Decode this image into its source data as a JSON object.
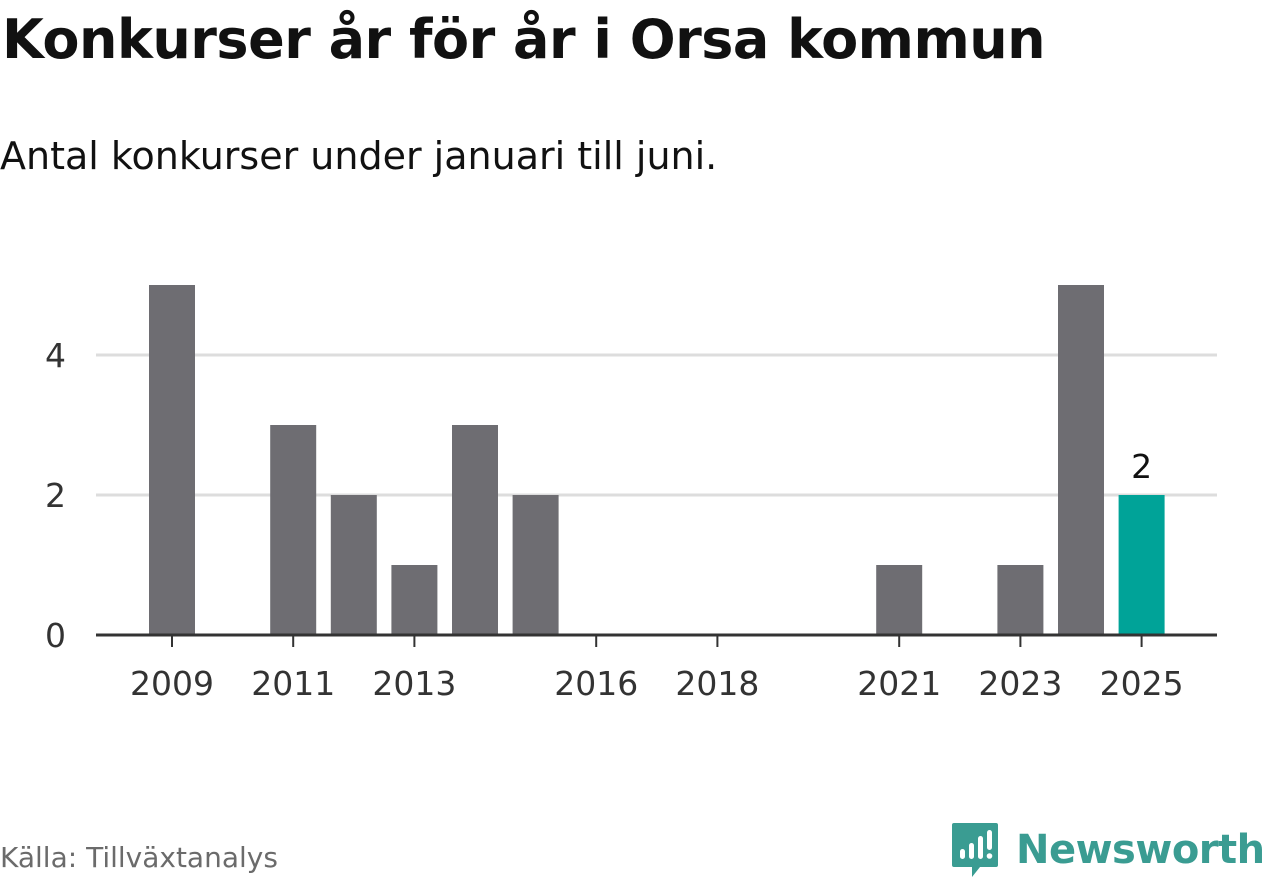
{
  "title": "Konkurser år för år i Orsa kommun",
  "subtitle": "Antal konkurser under januari till juni.",
  "source": "Källa: Tillväxtanalys",
  "brand": {
    "name": "Newsworthy",
    "icon": "newsworthy-logo-icon",
    "color": "#3a9c92"
  },
  "colors": {
    "bar": "#6e6d72",
    "highlight": "#00a398",
    "grid": "#dddddd",
    "axis": "#333333",
    "tick_text": "#333333"
  },
  "chart_data": {
    "type": "bar",
    "categories": [
      "2009",
      "2010",
      "2011",
      "2012",
      "2013",
      "2014",
      "2015",
      "2016",
      "2017",
      "2018",
      "2019",
      "2020",
      "2021",
      "2022",
      "2023",
      "2024",
      "2025"
    ],
    "values": [
      5,
      0,
      3,
      2,
      1,
      3,
      2,
      0,
      0,
      0,
      0,
      0,
      1,
      0,
      1,
      5,
      2
    ],
    "x_tick_labels": [
      "2009",
      "2011",
      "2013",
      "2016",
      "2018",
      "2021",
      "2023",
      "2025"
    ],
    "y_ticks": [
      0,
      2,
      4
    ],
    "ylim": [
      0,
      5
    ],
    "highlight_category": "2025",
    "data_labels": [
      {
        "category": "2025",
        "text": "2"
      }
    ],
    "title": "Konkurser år för år i Orsa kommun",
    "subtitle": "Antal konkurser under januari till juni.",
    "xlabel": "",
    "ylabel": "",
    "grid": true,
    "legend": "none"
  }
}
